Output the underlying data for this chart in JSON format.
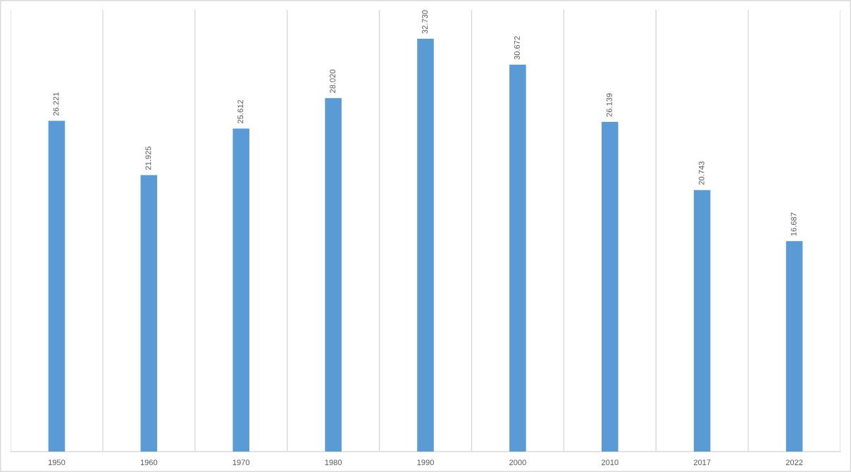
{
  "chart_data": {
    "type": "bar",
    "categories": [
      "1950",
      "1960",
      "1970",
      "1980",
      "1990",
      "2000",
      "2010",
      "2017",
      "2022"
    ],
    "values": [
      26.221,
      21.925,
      25.612,
      28.02,
      32.73,
      30.672,
      26.139,
      20.743,
      16.687
    ],
    "value_labels": [
      "26.221",
      "21.925",
      "25.612",
      "28.020",
      "32.730",
      "30.672",
      "26.139",
      "20.743",
      "16.687"
    ],
    "color": "#5b9bd5",
    "grid": "x",
    "tick_labels": "x"
  }
}
